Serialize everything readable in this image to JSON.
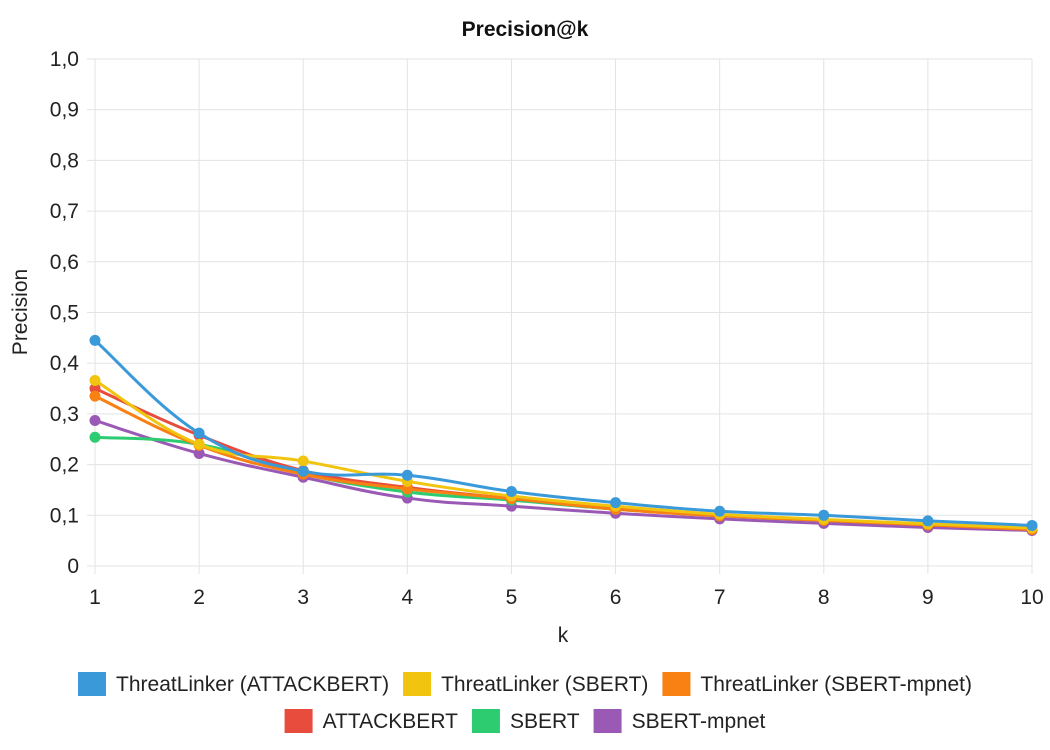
{
  "chart_data": {
    "type": "line",
    "title": "Precision@k",
    "xlabel": "k",
    "ylabel": "Precision",
    "x": [
      1,
      2,
      3,
      4,
      5,
      6,
      7,
      8,
      9,
      10
    ],
    "ylim": [
      0,
      1.0
    ],
    "yticks": [
      "0",
      "0,1",
      "0,2",
      "0,3",
      "0,4",
      "0,5",
      "0,6",
      "0,7",
      "0,8",
      "0,9",
      "1,0"
    ],
    "xticks": [
      "1",
      "2",
      "3",
      "4",
      "5",
      "6",
      "7",
      "8",
      "9",
      "10"
    ],
    "grid": true,
    "legend_position": "bottom",
    "series": [
      {
        "name": "ThreatLinker (ATTACKBERT)",
        "color": "#3a9ad9",
        "values": [
          0.445,
          0.262,
          0.187,
          0.179,
          0.147,
          0.125,
          0.108,
          0.1,
          0.089,
          0.08
        ]
      },
      {
        "name": "ThreatLinker (SBERT)",
        "color": "#f1c40f",
        "values": [
          0.366,
          0.24,
          0.207,
          0.167,
          0.138,
          0.118,
          0.102,
          0.092,
          0.083,
          0.075
        ]
      },
      {
        "name": "ThreatLinker (SBERT-mpnet)",
        "color": "#f98012",
        "values": [
          0.335,
          0.238,
          0.181,
          0.152,
          0.133,
          0.112,
          0.099,
          0.09,
          0.081,
          0.072
        ]
      },
      {
        "name": "ATTACKBERT",
        "color": "#e74c3c",
        "values": [
          0.35,
          0.258,
          0.188,
          0.155,
          0.133,
          0.113,
          0.1,
          0.09,
          0.081,
          0.072
        ]
      },
      {
        "name": "SBERT",
        "color": "#2ecc71",
        "values": [
          0.254,
          0.24,
          0.182,
          0.146,
          0.13,
          0.112,
          0.099,
          0.09,
          0.081,
          0.073
        ]
      },
      {
        "name": "SBERT-mpnet",
        "color": "#9b59b6",
        "values": [
          0.287,
          0.222,
          0.175,
          0.134,
          0.118,
          0.104,
          0.093,
          0.084,
          0.076,
          0.07
        ]
      }
    ]
  }
}
